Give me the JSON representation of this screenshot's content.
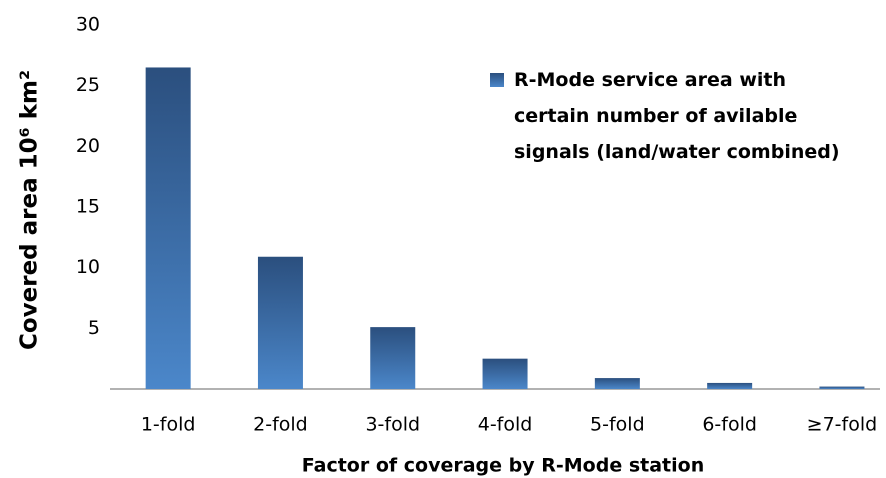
{
  "chart_data": {
    "type": "bar",
    "x_label": "Factor of coverage by R-Mode station",
    "y_label": "Covered area 10⁶ km²",
    "categories": [
      "1-fold",
      "2-fold",
      "3-fold",
      "4-fold",
      "5-fold",
      "6-fold",
      "≥7-fold"
    ],
    "series": [
      {
        "name": "R-Mode service area with certain number of avilable signals (land/water combined)",
        "color": "#3f77b8",
        "values": [
          26.5,
          10.9,
          5.1,
          2.5,
          0.9,
          0.5,
          0.2
        ]
      }
    ],
    "ylim": [
      0,
      30
    ],
    "yticks": [
      5,
      10,
      15,
      20,
      25,
      30
    ],
    "grid": false,
    "legend": "upper right"
  }
}
